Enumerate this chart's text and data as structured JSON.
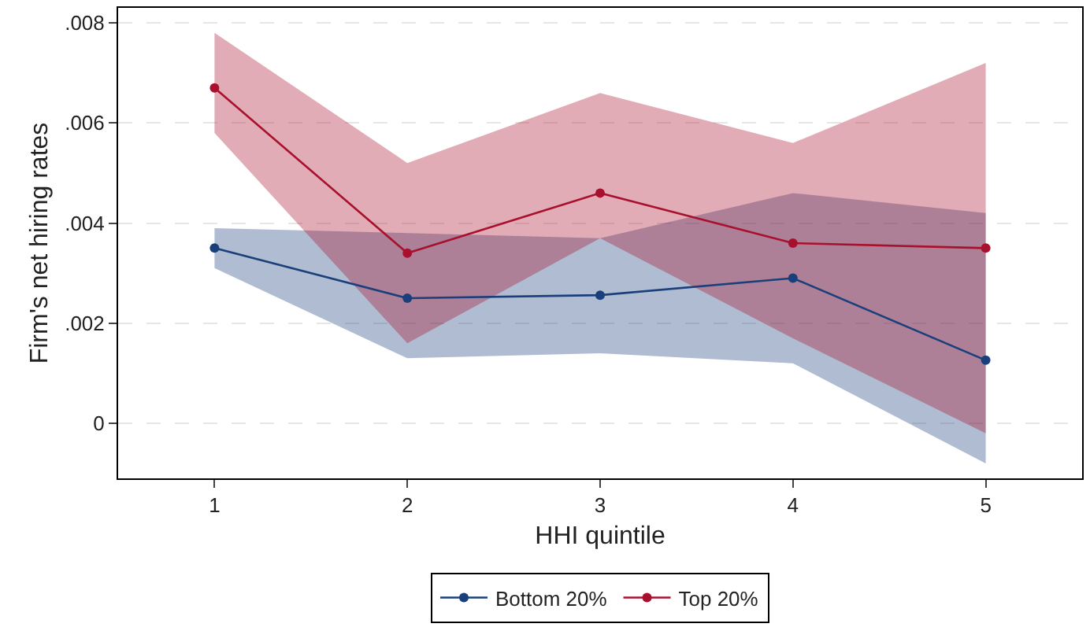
{
  "chart_data": {
    "type": "line",
    "xlabel": "HHI quintile",
    "ylabel": "Firm's net hiring rates",
    "x": [
      1,
      2,
      3,
      4,
      5
    ],
    "xlim": [
      0.5,
      5.5
    ],
    "xticks": [
      1,
      2,
      3,
      4,
      5
    ],
    "ylim": [
      -0.0011,
      0.0083
    ],
    "yticks": [
      {
        "value": 0,
        "label": "0"
      },
      {
        "value": 0.002,
        "label": ".002"
      },
      {
        "value": 0.004,
        "label": ".004"
      },
      {
        "value": 0.006,
        "label": ".006"
      },
      {
        "value": 0.008,
        "label": ".008"
      }
    ],
    "series": [
      {
        "name": "Bottom 20%",
        "color": "#1a3f7a",
        "values": [
          0.0035,
          0.0025,
          0.00256,
          0.0029,
          0.00126
        ],
        "lower": [
          0.0031,
          0.0013,
          0.0014,
          0.0012,
          -0.0008
        ],
        "upper": [
          0.0039,
          0.0038,
          0.0037,
          0.0046,
          0.0042
        ]
      },
      {
        "name": "Top 20%",
        "color": "#a8102e",
        "values": [
          0.0067,
          0.0034,
          0.0046,
          0.0036,
          0.0035
        ],
        "lower": [
          0.0058,
          0.0016,
          0.0037,
          0.0017,
          -0.0002
        ],
        "upper": [
          0.0078,
          0.0052,
          0.0066,
          0.0056,
          0.0072
        ]
      }
    ],
    "grid": "y",
    "legend": "bottom",
    "marker": "circle",
    "line_style": "solid"
  }
}
